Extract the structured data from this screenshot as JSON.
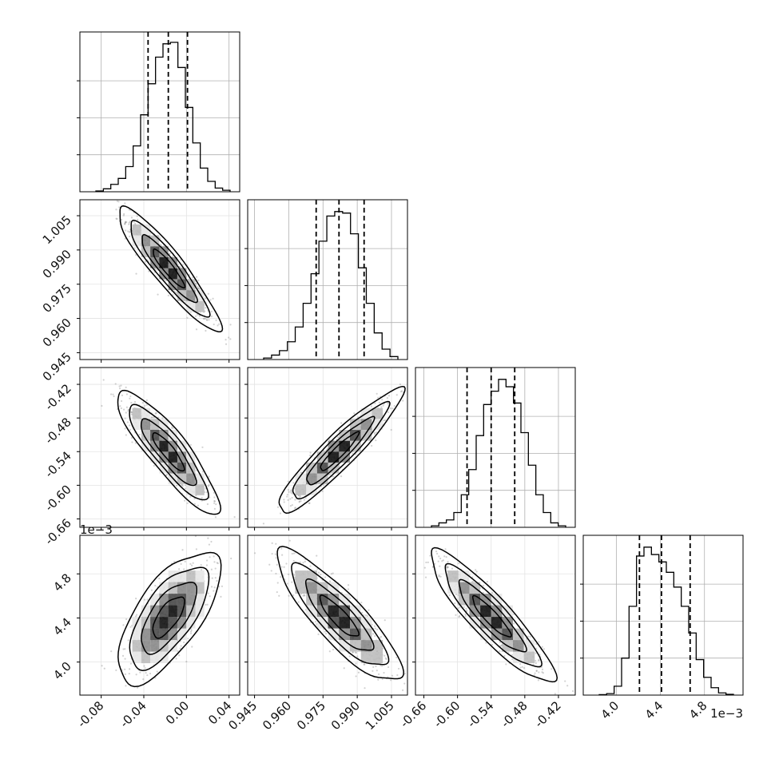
{
  "chart_data": {
    "type": "corner",
    "parameters": [
      {
        "range": [
          -0.1,
          0.05
        ],
        "ticks": [
          "-0.08",
          "-0.04",
          "0.00",
          "0.04"
        ],
        "tick_values": [
          -0.08,
          -0.04,
          0.0,
          0.04
        ],
        "quantiles": [
          -0.036,
          -0.017,
          0.001
        ],
        "offset_label": ""
      },
      {
        "range": [
          0.942,
          1.012
        ],
        "ticks": [
          "0.945",
          "0.960",
          "0.975",
          "0.990",
          "1.005"
        ],
        "tick_values": [
          0.945,
          0.96,
          0.975,
          0.99,
          1.005
        ],
        "quantiles": [
          0.972,
          0.982,
          0.993
        ],
        "offset_label": ""
      },
      {
        "range": [
          -0.675,
          -0.39
        ],
        "ticks": [
          "-0.66",
          "-0.60",
          "-0.54",
          "-0.48",
          "-0.42"
        ],
        "tick_values": [
          -0.66,
          -0.6,
          -0.54,
          -0.48,
          -0.42
        ],
        "quantiles": [
          -0.583,
          -0.54,
          -0.498
        ],
        "offset_label": ""
      },
      {
        "range": [
          3.7,
          5.15
        ],
        "ticks": [
          "4.0",
          "4.4",
          "4.8"
        ],
        "tick_values": [
          4.0,
          4.4,
          4.8
        ],
        "quantiles": [
          4.21,
          4.41,
          4.67
        ],
        "offset_label": "1e−3"
      }
    ],
    "histograms": [
      [
        0.005,
        0.02,
        0.05,
        0.09,
        0.17,
        0.31,
        0.52,
        0.73,
        0.91,
        1.0,
        1.01,
        0.84,
        0.57,
        0.33,
        0.16,
        0.07,
        0.025,
        0.01
      ],
      [
        0.01,
        0.03,
        0.06,
        0.12,
        0.22,
        0.38,
        0.58,
        0.8,
        0.97,
        1.0,
        0.99,
        0.85,
        0.62,
        0.38,
        0.18,
        0.07,
        0.02
      ],
      [
        0.01,
        0.03,
        0.05,
        0.1,
        0.22,
        0.39,
        0.62,
        0.83,
        0.92,
        1.0,
        0.95,
        0.84,
        0.64,
        0.42,
        0.22,
        0.1,
        0.03,
        0.01
      ],
      [
        0.003,
        0.01,
        0.06,
        0.25,
        0.6,
        0.94,
        1.0,
        0.95,
        0.9,
        0.83,
        0.73,
        0.6,
        0.42,
        0.24,
        0.12,
        0.05,
        0.015,
        0.005
      ]
    ],
    "pairs": [
      {
        "row": 1,
        "col": 0,
        "corr": -0.92
      },
      {
        "row": 2,
        "col": 0,
        "corr": -0.88
      },
      {
        "row": 2,
        "col": 1,
        "corr": 0.93
      },
      {
        "row": 3,
        "col": 0,
        "corr": 0.68
      },
      {
        "row": 3,
        "col": 1,
        "corr": -0.86
      },
      {
        "row": 3,
        "col": 2,
        "corr": -0.9
      }
    ],
    "grid": true,
    "colors": {
      "line": "#000000",
      "grid": "#b0b0b0",
      "points": "#7f7f7f",
      "density_levels": [
        "#e6e6e6",
        "#bdbdbd",
        "#8a8a8a",
        "#4a4a4a",
        "#111111"
      ]
    }
  }
}
